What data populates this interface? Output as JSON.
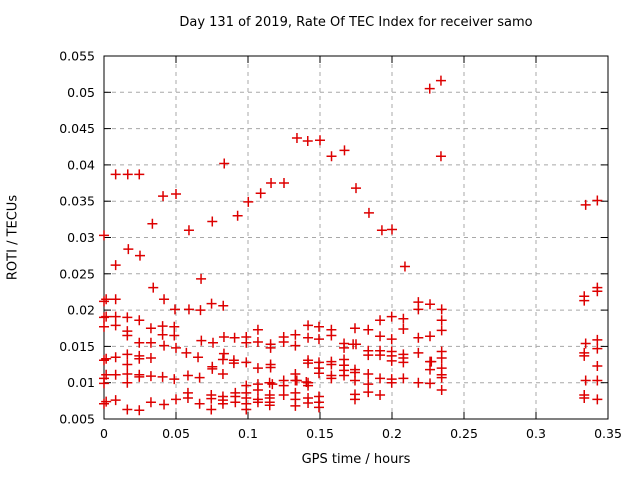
{
  "chart_data": {
    "type": "scatter",
    "title": "Day 131 of 2019, Rate Of TEC Index for receiver samo",
    "xlabel": "GPS time / hours",
    "ylabel": "ROTI / TECUs",
    "xlim": [
      0,
      0.35
    ],
    "ylim": [
      0.005,
      0.055
    ],
    "xticks": [
      0,
      0.05,
      0.1,
      0.15,
      0.2,
      0.25,
      0.3,
      0.35
    ],
    "xtick_labels": [
      "0",
      "0.05",
      "0.1",
      "0.15",
      "0.2",
      "0.25",
      "0.3",
      "0.35"
    ],
    "yticks": [
      0.005,
      0.01,
      0.015,
      0.02,
      0.025,
      0.03,
      0.035,
      0.04,
      0.045,
      0.05,
      0.055
    ],
    "ytick_labels": [
      "0.005",
      "0.01",
      "0.015",
      "0.02",
      "0.025",
      "0.03",
      "0.035",
      "0.04",
      "0.045",
      "0.05",
      "0.055"
    ],
    "grid": true,
    "legend": "none",
    "marker": {
      "shape": "plus",
      "color": "#dd0000",
      "size": 10
    },
    "grid_color": "#a8a8a8",
    "border_color": "#000000",
    "points": [
      [
        0,
        0.0303
      ],
      [
        0,
        0.0212
      ],
      [
        0,
        0.019
      ],
      [
        0,
        0.0177
      ],
      [
        0,
        0.0131
      ],
      [
        0,
        0.0106
      ],
      [
        0,
        0.0099
      ],
      [
        0,
        0.0071
      ],
      [
        0.0015,
        0.0215
      ],
      [
        0.0015,
        0.0191
      ],
      [
        0.0015,
        0.0133
      ],
      [
        0.0015,
        0.0111
      ],
      [
        0.0015,
        0.0074
      ],
      [
        0.0081,
        0.0387
      ],
      [
        0.0081,
        0.0262
      ],
      [
        0.0081,
        0.0215
      ],
      [
        0.0081,
        0.0191
      ],
      [
        0.0081,
        0.0179
      ],
      [
        0.0081,
        0.0135
      ],
      [
        0.0081,
        0.0111
      ],
      [
        0.0081,
        0.0076
      ],
      [
        0.0165,
        0.0387
      ],
      [
        0.0169,
        0.0284
      ],
      [
        0.0162,
        0.019
      ],
      [
        0.0162,
        0.0171
      ],
      [
        0.0162,
        0.0165
      ],
      [
        0.0162,
        0.0139
      ],
      [
        0.0162,
        0.0125
      ],
      [
        0.0162,
        0.0112
      ],
      [
        0.0162,
        0.01
      ],
      [
        0.0162,
        0.0063
      ],
      [
        0.0245,
        0.0387
      ],
      [
        0.025,
        0.0275
      ],
      [
        0.0245,
        0.0186
      ],
      [
        0.0245,
        0.0155
      ],
      [
        0.0245,
        0.0137
      ],
      [
        0.0245,
        0.0133
      ],
      [
        0.0245,
        0.0111
      ],
      [
        0.0245,
        0.0108
      ],
      [
        0.0245,
        0.0062
      ],
      [
        0.0336,
        0.0319
      ],
      [
        0.0342,
        0.0231
      ],
      [
        0.0326,
        0.0175
      ],
      [
        0.0326,
        0.0155
      ],
      [
        0.0326,
        0.0134
      ],
      [
        0.0326,
        0.0109
      ],
      [
        0.0326,
        0.0073
      ],
      [
        0.041,
        0.0357
      ],
      [
        0.0417,
        0.0215
      ],
      [
        0.0407,
        0.0178
      ],
      [
        0.0407,
        0.0166
      ],
      [
        0.0417,
        0.0151
      ],
      [
        0.0407,
        0.0108
      ],
      [
        0.0417,
        0.007
      ],
      [
        0.05,
        0.036
      ],
      [
        0.0493,
        0.0201
      ],
      [
        0.0488,
        0.0177
      ],
      [
        0.0488,
        0.0165
      ],
      [
        0.05,
        0.0148
      ],
      [
        0.0488,
        0.0105
      ],
      [
        0.05,
        0.0077
      ],
      [
        0.059,
        0.031
      ],
      [
        0.059,
        0.0201
      ],
      [
        0.0572,
        0.0141
      ],
      [
        0.0583,
        0.011
      ],
      [
        0.0583,
        0.0086
      ],
      [
        0.0583,
        0.0079
      ],
      [
        0.0674,
        0.0243
      ],
      [
        0.067,
        0.02
      ],
      [
        0.0676,
        0.0158
      ],
      [
        0.0653,
        0.0135
      ],
      [
        0.0664,
        0.0107
      ],
      [
        0.0664,
        0.0071
      ],
      [
        0.0752,
        0.0322
      ],
      [
        0.0747,
        0.0209
      ],
      [
        0.0757,
        0.0155
      ],
      [
        0.0752,
        0.0122
      ],
      [
        0.0752,
        0.0119
      ],
      [
        0.0745,
        0.0083
      ],
      [
        0.0745,
        0.0078
      ],
      [
        0.0745,
        0.0063
      ],
      [
        0.0835,
        0.0402
      ],
      [
        0.0828,
        0.0206
      ],
      [
        0.0833,
        0.0163
      ],
      [
        0.0833,
        0.014
      ],
      [
        0.0826,
        0.0132
      ],
      [
        0.0826,
        0.0112
      ],
      [
        0.0826,
        0.0081
      ],
      [
        0.0826,
        0.0076
      ],
      [
        0.0826,
        0.0071
      ],
      [
        0.0928,
        0.033
      ],
      [
        0.0907,
        0.0162
      ],
      [
        0.0902,
        0.0131
      ],
      [
        0.0902,
        0.0127
      ],
      [
        0.0912,
        0.0086
      ],
      [
        0.0912,
        0.0081
      ],
      [
        0.0912,
        0.0073
      ],
      [
        0.1002,
        0.0349
      ],
      [
        0.0988,
        0.0163
      ],
      [
        0.0988,
        0.0155
      ],
      [
        0.0988,
        0.0128
      ],
      [
        0.0988,
        0.0096
      ],
      [
        0.0988,
        0.0086
      ],
      [
        0.0988,
        0.0079
      ],
      [
        0.0988,
        0.0071
      ],
      [
        0.0988,
        0.0063
      ],
      [
        0.1088,
        0.0361
      ],
      [
        0.1069,
        0.0173
      ],
      [
        0.1069,
        0.0156
      ],
      [
        0.1069,
        0.012
      ],
      [
        0.1069,
        0.0098
      ],
      [
        0.1069,
        0.009
      ],
      [
        0.1069,
        0.0077
      ],
      [
        0.1069,
        0.0073
      ],
      [
        0.116,
        0.0375
      ],
      [
        0.1157,
        0.0153
      ],
      [
        0.1157,
        0.0148
      ],
      [
        0.1157,
        0.0125
      ],
      [
        0.1157,
        0.0121
      ],
      [
        0.115,
        0.01
      ],
      [
        0.1169,
        0.0098
      ],
      [
        0.1151,
        0.0083
      ],
      [
        0.1151,
        0.0079
      ],
      [
        0.1151,
        0.0073
      ],
      [
        0.1151,
        0.0069
      ],
      [
        0.125,
        0.0375
      ],
      [
        0.1248,
        0.0163
      ],
      [
        0.1248,
        0.0156
      ],
      [
        0.1248,
        0.0103
      ],
      [
        0.1248,
        0.0096
      ],
      [
        0.1248,
        0.0083
      ],
      [
        0.134,
        0.0437
      ],
      [
        0.1329,
        0.0166
      ],
      [
        0.1329,
        0.0151
      ],
      [
        0.1329,
        0.0112
      ],
      [
        0.1329,
        0.0103
      ],
      [
        0.1339,
        0.0103
      ],
      [
        0.1329,
        0.0086
      ],
      [
        0.1329,
        0.0077
      ],
      [
        0.1329,
        0.0068
      ],
      [
        0.1415,
        0.0433
      ],
      [
        0.1417,
        0.0179
      ],
      [
        0.1417,
        0.0162
      ],
      [
        0.1417,
        0.0131
      ],
      [
        0.1417,
        0.0127
      ],
      [
        0.1405,
        0.0101
      ],
      [
        0.1417,
        0.01
      ],
      [
        0.1417,
        0.0096
      ],
      [
        0.1417,
        0.0079
      ],
      [
        0.1417,
        0.0072
      ],
      [
        0.15,
        0.0434
      ],
      [
        0.1493,
        0.0177
      ],
      [
        0.1493,
        0.016
      ],
      [
        0.1493,
        0.0128
      ],
      [
        0.1493,
        0.012
      ],
      [
        0.1493,
        0.0113
      ],
      [
        0.1493,
        0.0081
      ],
      [
        0.1493,
        0.0073
      ],
      [
        0.1493,
        0.0066
      ],
      [
        0.158,
        0.0412
      ],
      [
        0.1579,
        0.0173
      ],
      [
        0.1579,
        0.0165
      ],
      [
        0.1579,
        0.0129
      ],
      [
        0.1579,
        0.0125
      ],
      [
        0.1579,
        0.011
      ],
      [
        0.1579,
        0.0106
      ],
      [
        0.167,
        0.042
      ],
      [
        0.1667,
        0.0154
      ],
      [
        0.1667,
        0.0148
      ],
      [
        0.1667,
        0.0132
      ],
      [
        0.1667,
        0.0124
      ],
      [
        0.1667,
        0.0117
      ],
      [
        0.1667,
        0.011
      ],
      [
        0.175,
        0.0368
      ],
      [
        0.1743,
        0.0175
      ],
      [
        0.173,
        0.0153
      ],
      [
        0.175,
        0.0153
      ],
      [
        0.1743,
        0.0118
      ],
      [
        0.1743,
        0.0114
      ],
      [
        0.1743,
        0.0103
      ],
      [
        0.1743,
        0.0084
      ],
      [
        0.1743,
        0.0077
      ],
      [
        0.184,
        0.0334
      ],
      [
        0.1835,
        0.0173
      ],
      [
        0.1835,
        0.0144
      ],
      [
        0.1835,
        0.0138
      ],
      [
        0.1835,
        0.0112
      ],
      [
        0.1835,
        0.0098
      ],
      [
        0.1835,
        0.0087
      ],
      [
        0.193,
        0.031
      ],
      [
        0.1917,
        0.0186
      ],
      [
        0.1917,
        0.0164
      ],
      [
        0.1917,
        0.0144
      ],
      [
        0.1917,
        0.0138
      ],
      [
        0.1917,
        0.0106
      ],
      [
        0.1917,
        0.0083
      ],
      [
        0.2,
        0.0311
      ],
      [
        0.1998,
        0.0191
      ],
      [
        0.1998,
        0.016
      ],
      [
        0.1998,
        0.0143
      ],
      [
        0.1998,
        0.0137
      ],
      [
        0.1998,
        0.013
      ],
      [
        0.1998,
        0.0105
      ],
      [
        0.1998,
        0.01
      ],
      [
        0.209,
        0.026
      ],
      [
        0.2079,
        0.0188
      ],
      [
        0.2079,
        0.0174
      ],
      [
        0.2079,
        0.0139
      ],
      [
        0.2079,
        0.0134
      ],
      [
        0.2079,
        0.0128
      ],
      [
        0.2079,
        0.0106
      ],
      [
        0.2183,
        0.0211
      ],
      [
        0.2183,
        0.0201
      ],
      [
        0.2183,
        0.0162
      ],
      [
        0.2183,
        0.0141
      ],
      [
        0.2183,
        0.01
      ],
      [
        0.2262,
        0.0505
      ],
      [
        0.2264,
        0.0208
      ],
      [
        0.2264,
        0.0164
      ],
      [
        0.2264,
        0.0129
      ],
      [
        0.2273,
        0.0129
      ],
      [
        0.2264,
        0.0118
      ],
      [
        0.2264,
        0.0099
      ],
      [
        0.234,
        0.0516
      ],
      [
        0.234,
        0.0412
      ],
      [
        0.2345,
        0.0201
      ],
      [
        0.2345,
        0.0186
      ],
      [
        0.2345,
        0.0172
      ],
      [
        0.2345,
        0.0143
      ],
      [
        0.2345,
        0.0134
      ],
      [
        0.2345,
        0.012
      ],
      [
        0.2345,
        0.0111
      ],
      [
        0.2345,
        0.0107
      ],
      [
        0.2345,
        0.009
      ],
      [
        0.3345,
        0.0345
      ],
      [
        0.3426,
        0.0351
      ],
      [
        0.3426,
        0.0231
      ],
      [
        0.3426,
        0.0226
      ],
      [
        0.3335,
        0.0219
      ],
      [
        0.3335,
        0.0213
      ],
      [
        0.3426,
        0.0159
      ],
      [
        0.3345,
        0.0154
      ],
      [
        0.3426,
        0.0147
      ],
      [
        0.3335,
        0.0141
      ],
      [
        0.3335,
        0.0137
      ],
      [
        0.3426,
        0.0123
      ],
      [
        0.3345,
        0.0103
      ],
      [
        0.3426,
        0.0103
      ],
      [
        0.3335,
        0.0083
      ],
      [
        0.3335,
        0.0079
      ],
      [
        0.3426,
        0.0077
      ]
    ]
  }
}
